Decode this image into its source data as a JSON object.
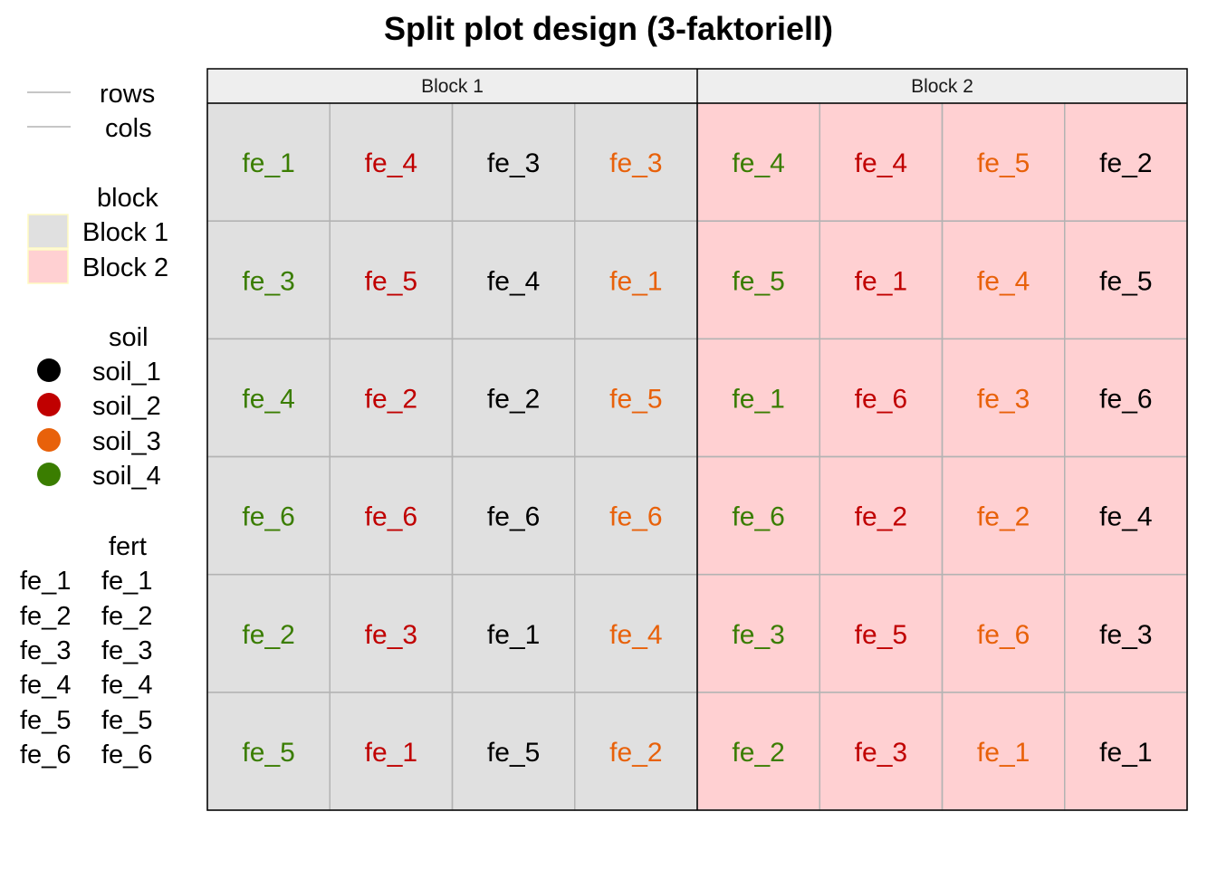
{
  "title": "Split plot design (3-faktoriell)",
  "colors": {
    "block_fill": {
      "Block 1": "#e0e0e0",
      "Block 2": "#ffd0d2"
    },
    "soil": {
      "soil_1": "#000000",
      "soil_2": "#c00000",
      "soil_3": "#e8610a",
      "soil_4": "#3a7d00"
    },
    "grid_line": "#b3b3b3",
    "strip_fill": "#eeeeee"
  },
  "legend": {
    "lines": {
      "items": [
        "rows",
        "cols"
      ]
    },
    "block": {
      "title": "block",
      "items": [
        "Block 1",
        "Block 2"
      ]
    },
    "soil": {
      "title": "soil",
      "items": [
        "soil_1",
        "soil_2",
        "soil_3",
        "soil_4"
      ]
    },
    "fert": {
      "title": "fert",
      "keys": [
        "fe_1",
        "fe_2",
        "fe_3",
        "fe_4",
        "fe_5",
        "fe_6"
      ],
      "labels": [
        "fe_1",
        "fe_2",
        "fe_3",
        "fe_4",
        "fe_5",
        "fe_6"
      ]
    }
  },
  "chart_data": {
    "type": "table",
    "title": "Split plot design (3-faktoriell)",
    "facet_by": "block",
    "n_rows": 6,
    "n_cols": 4,
    "panels": [
      {
        "label": "Block 1",
        "fill_key": "Block 1",
        "column_soil": [
          "soil_4",
          "soil_2",
          "soil_1",
          "soil_3"
        ],
        "cells": [
          [
            "fe_1",
            "fe_4",
            "fe_3",
            "fe_3"
          ],
          [
            "fe_3",
            "fe_5",
            "fe_4",
            "fe_1"
          ],
          [
            "fe_4",
            "fe_2",
            "fe_2",
            "fe_5"
          ],
          [
            "fe_6",
            "fe_6",
            "fe_6",
            "fe_6"
          ],
          [
            "fe_2",
            "fe_3",
            "fe_1",
            "fe_4"
          ],
          [
            "fe_5",
            "fe_1",
            "fe_5",
            "fe_2"
          ]
        ]
      },
      {
        "label": "Block 2",
        "fill_key": "Block 2",
        "column_soil": [
          "soil_4",
          "soil_2",
          "soil_3",
          "soil_1"
        ],
        "cells": [
          [
            "fe_4",
            "fe_4",
            "fe_5",
            "fe_2"
          ],
          [
            "fe_5",
            "fe_1",
            "fe_4",
            "fe_5"
          ],
          [
            "fe_1",
            "fe_6",
            "fe_3",
            "fe_6"
          ],
          [
            "fe_6",
            "fe_2",
            "fe_2",
            "fe_4"
          ],
          [
            "fe_3",
            "fe_5",
            "fe_6",
            "fe_3"
          ],
          [
            "fe_2",
            "fe_3",
            "fe_1",
            "fe_1"
          ]
        ]
      }
    ]
  }
}
